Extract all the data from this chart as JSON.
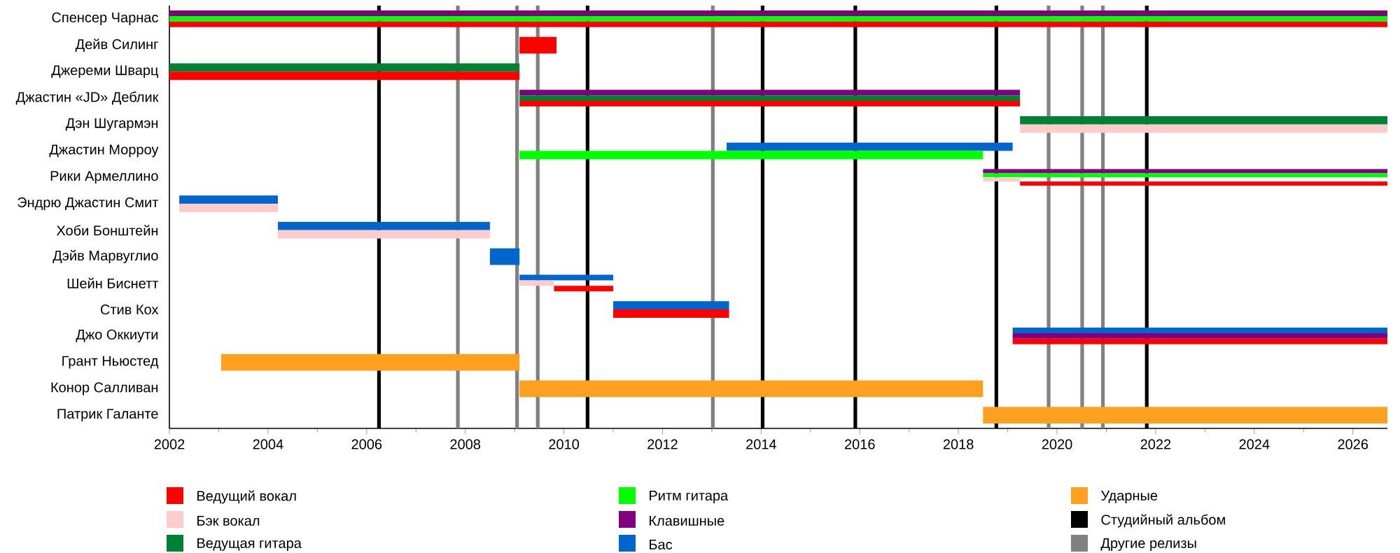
{
  "chart_data": {
    "type": "bar",
    "orientation": "horizontal",
    "categories": [
      "Спенсер Чарнас",
      "Дейв Силинг",
      "Джереми Шварц",
      "Джастин «JD» Деблик",
      "Дэн Шугармэн",
      "Джастин Морроу",
      "Рики Армеллино",
      "Эндрю Джастин Смит",
      "Хоби Бонштейн",
      "Дэйв Марвуглио",
      "Шейн Биснетт",
      "Стив Кох",
      "Джо Оккиути",
      "Грант Ньюстед",
      "Конор Салливан",
      "Патрик Галанте"
    ],
    "series": [
      {
        "name": "Ведущий вокал",
        "color": "#ff0000",
        "values": [
          24.7,
          0.75,
          7.1,
          10.15,
          null,
          null,
          7.45,
          null,
          null,
          null,
          1.2,
          2.35,
          7.6,
          null,
          null,
          null
        ],
        "base": [
          2002,
          2009.1,
          2002,
          2009.1,
          null,
          null,
          2019.25,
          null,
          null,
          null,
          2009.8,
          2011.0,
          2019.1,
          null,
          null,
          null
        ]
      },
      {
        "name": "Бэк вокал",
        "color": "#ffcccc",
        "values": [
          null,
          null,
          null,
          null,
          7.45,
          null,
          0.75,
          2.0,
          4.3,
          null,
          0.7,
          null,
          null,
          null,
          null,
          null
        ],
        "base": [
          null,
          null,
          null,
          null,
          2019.25,
          null,
          2018.5,
          2002.2,
          2004.2,
          null,
          2009.1,
          null,
          null,
          null,
          null,
          null
        ]
      },
      {
        "name": "Ведущая гитара",
        "color": "#008033",
        "values": [
          null,
          null,
          7.1,
          10.15,
          7.45,
          null,
          null,
          null,
          null,
          null,
          null,
          null,
          null,
          null,
          null,
          null
        ],
        "base": [
          null,
          null,
          2002,
          2009.1,
          2019.25,
          null,
          null,
          null,
          null,
          null,
          null,
          null,
          null,
          null,
          null,
          null
        ]
      },
      {
        "name": "Ритм гитара",
        "color": "#00ff00",
        "values": [
          24.7,
          null,
          null,
          null,
          null,
          9.4,
          8.2,
          null,
          null,
          null,
          null,
          null,
          null,
          null,
          null,
          null
        ],
        "base": [
          2002,
          null,
          null,
          null,
          null,
          2009.1,
          2018.5,
          null,
          null,
          null,
          null,
          null,
          null,
          null,
          null,
          null
        ]
      },
      {
        "name": "Клавишные",
        "color": "#800080",
        "values": [
          24.7,
          null,
          null,
          10.15,
          null,
          null,
          8.2,
          null,
          null,
          null,
          null,
          null,
          7.6,
          null,
          null,
          null
        ],
        "base": [
          2002,
          null,
          null,
          2009.1,
          null,
          null,
          2018.5,
          null,
          null,
          null,
          null,
          null,
          2019.1,
          null,
          null,
          null
        ]
      },
      {
        "name": "Бас",
        "color": "#0066cc",
        "values": [
          null,
          null,
          null,
          null,
          null,
          5.8,
          null,
          2.0,
          4.3,
          0.6,
          1.9,
          2.35,
          7.6,
          null,
          null,
          null
        ],
        "base": [
          null,
          null,
          null,
          null,
          null,
          2013.3,
          null,
          2002.2,
          2004.2,
          2008.5,
          2009.1,
          2011.0,
          2019.1,
          null,
          null,
          null
        ]
      },
      {
        "name": "Ударные",
        "color": "#ffa020",
        "values": [
          null,
          null,
          null,
          null,
          null,
          null,
          null,
          null,
          null,
          null,
          null,
          null,
          null,
          6.05,
          9.4,
          8.2
        ],
        "base": [
          null,
          null,
          null,
          null,
          null,
          null,
          null,
          null,
          null,
          null,
          null,
          null,
          null,
          2003.05,
          2009.1,
          2018.5
        ]
      }
    ],
    "xlim": [
      2002,
      2026.7
    ],
    "xticks": [
      2002,
      2004,
      2006,
      2008,
      2010,
      2012,
      2014,
      2016,
      2018,
      2020,
      2022,
      2024,
      2026
    ],
    "ref_lines": [
      {
        "axis": "x",
        "value": 2006.25,
        "color": "#000000",
        "label": "Студийный альбом"
      },
      {
        "axis": "x",
        "value": 2010.48,
        "color": "#000000"
      },
      {
        "axis": "x",
        "value": 2014.03,
        "color": "#000000"
      },
      {
        "axis": "x",
        "value": 2015.91,
        "color": "#000000"
      },
      {
        "axis": "x",
        "value": 2018.77,
        "color": "#000000"
      },
      {
        "axis": "x",
        "value": 2021.82,
        "color": "#000000"
      },
      {
        "axis": "x",
        "value": 2007.85,
        "color": "#808080",
        "label": "Другие релизы"
      },
      {
        "axis": "x",
        "value": 2009.05,
        "color": "#808080"
      },
      {
        "axis": "x",
        "value": 2009.47,
        "color": "#808080"
      },
      {
        "axis": "x",
        "value": 2013.02,
        "color": "#808080"
      },
      {
        "axis": "x",
        "value": 2019.83,
        "color": "#808080"
      },
      {
        "axis": "x",
        "value": 2020.51,
        "color": "#808080"
      },
      {
        "axis": "x",
        "value": 2020.93,
        "color": "#808080"
      }
    ],
    "legend": "bottom"
  }
}
